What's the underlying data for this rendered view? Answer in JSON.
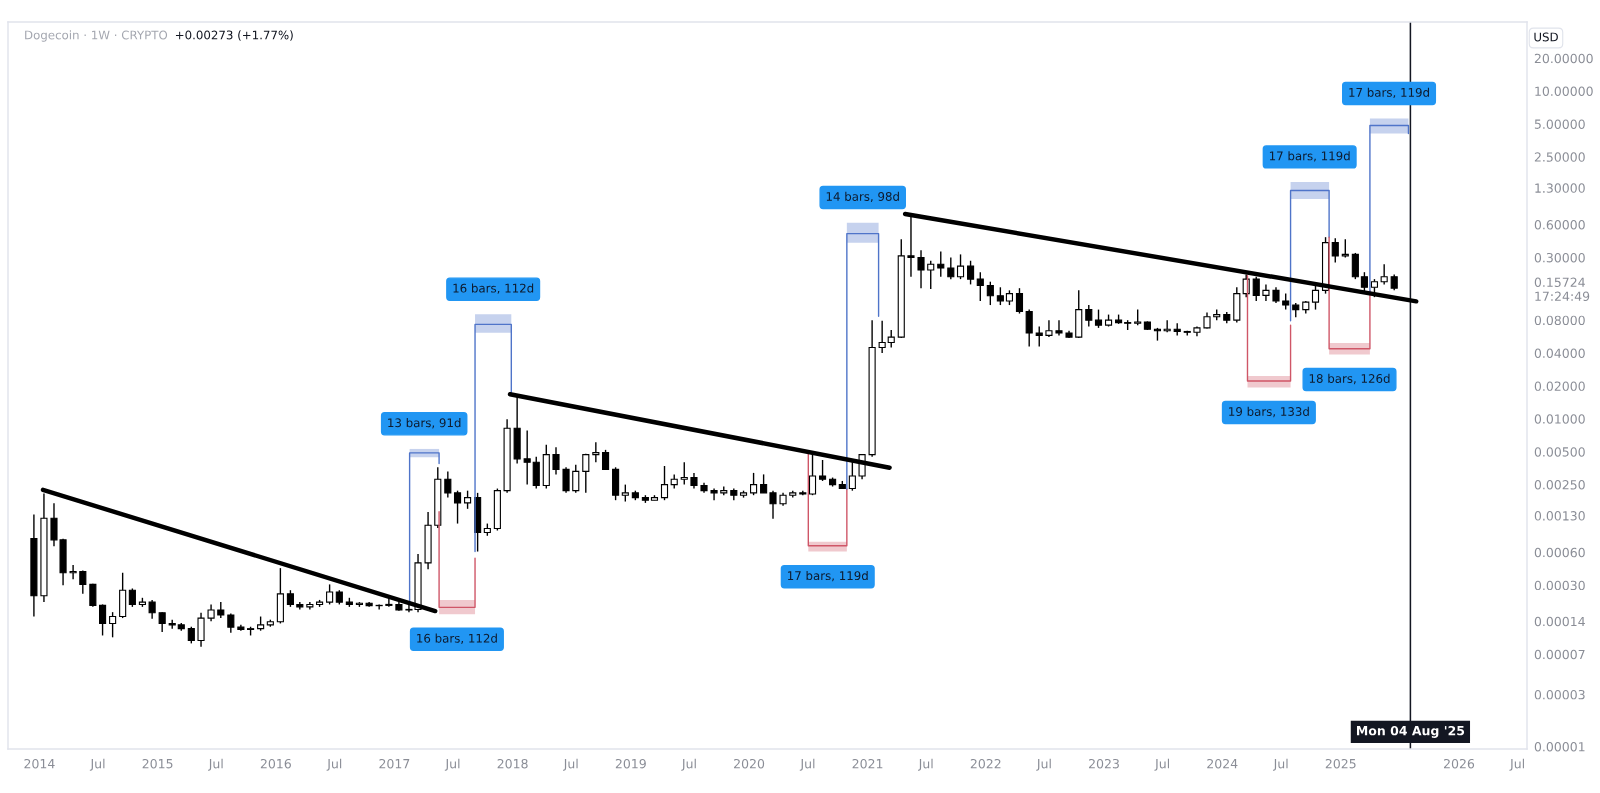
{
  "chart_data": {
    "type": "candlestick",
    "title": "Dogecoin · 1W · CRYPTO",
    "subtitle": "+0.00273 (+1.77%)",
    "ylabel": "USD",
    "log": true,
    "grid": false,
    "xlim": [
      "2013-09-26",
      "2026-07-30"
    ],
    "xticks": [
      {
        "value": "2014-01-01",
        "label": "2014"
      },
      {
        "value": "2014-07-01",
        "label": "Jul"
      },
      {
        "value": "2015-01-01",
        "label": "2015"
      },
      {
        "value": "2015-07-01",
        "label": "Jul"
      },
      {
        "value": "2016-01-01",
        "label": "2016"
      },
      {
        "value": "2016-07-01",
        "label": "Jul"
      },
      {
        "value": "2017-01-01",
        "label": "2017"
      },
      {
        "value": "2017-07-01",
        "label": "Jul"
      },
      {
        "value": "2018-01-01",
        "label": "2018"
      },
      {
        "value": "2018-07-01",
        "label": "Jul"
      },
      {
        "value": "2019-01-01",
        "label": "2019"
      },
      {
        "value": "2019-07-01",
        "label": "Jul"
      },
      {
        "value": "2020-01-01",
        "label": "2020"
      },
      {
        "value": "2020-07-01",
        "label": "Jul"
      },
      {
        "value": "2021-01-01",
        "label": "2021"
      },
      {
        "value": "2021-07-01",
        "label": "Jul"
      },
      {
        "value": "2022-01-01",
        "label": "2022"
      },
      {
        "value": "2022-07-01",
        "label": "Jul"
      },
      {
        "value": "2023-01-01",
        "label": "2023"
      },
      {
        "value": "2023-07-01",
        "label": "Jul"
      },
      {
        "value": "2024-01-01",
        "label": "2024"
      },
      {
        "value": "2024-07-01",
        "label": "Jul"
      },
      {
        "value": "2025-01-01",
        "label": "2025"
      },
      {
        "value": "2026-01-01",
        "label": "2026"
      },
      {
        "value": "2026-07-01",
        "label": "Jul"
      }
    ],
    "ylim": [
      9.5e-06,
      42.9
    ],
    "yticks": [
      {
        "value": 20,
        "label": "20.00000"
      },
      {
        "value": 10,
        "label": "10.00000"
      },
      {
        "value": 5,
        "label": "5.00000"
      },
      {
        "value": 2.5,
        "label": "2.50000"
      },
      {
        "value": 1.3,
        "label": "1.30000"
      },
      {
        "value": 0.6,
        "label": "0.60000"
      },
      {
        "value": 0.3,
        "label": "0.30000"
      },
      {
        "value": 0.15724,
        "label": "0.15724\n17:24:49"
      },
      {
        "value": 0.08,
        "label": "0.08000"
      },
      {
        "value": 0.04,
        "label": "0.04000"
      },
      {
        "value": 0.02,
        "label": "0.02000"
      },
      {
        "value": 0.01,
        "label": "0.01000"
      },
      {
        "value": 0.005,
        "label": "0.00500"
      },
      {
        "value": 0.0025,
        "label": "0.00250"
      },
      {
        "value": 0.0013,
        "label": "0.00130"
      },
      {
        "value": 0.0006,
        "label": "0.00060"
      },
      {
        "value": 0.0003,
        "label": "0.00030"
      },
      {
        "value": 0.00014,
        "label": "0.00014"
      },
      {
        "value": 7e-05,
        "label": "0.00007"
      },
      {
        "value": 3e-05,
        "label": "0.00003"
      },
      {
        "value": 1e-05,
        "label": "0.00001"
      }
    ],
    "series": [
      {
        "color": "#000000",
        "x": [
          "2013-12-15",
          "2014-01-15",
          "2014-02-15",
          "2014-03-15",
          "2014-04-15",
          "2014-05-15",
          "2014-06-15",
          "2014-07-15",
          "2014-08-15",
          "2014-09-15",
          "2014-10-15",
          "2014-11-15",
          "2014-12-15",
          "2015-01-15",
          "2015-02-15",
          "2015-03-15",
          "2015-04-15",
          "2015-05-15",
          "2015-06-15",
          "2015-07-15",
          "2015-08-15",
          "2015-09-15",
          "2015-10-15",
          "2015-11-15",
          "2015-12-15",
          "2016-01-15",
          "2016-02-15",
          "2016-03-15",
          "2016-04-15",
          "2016-05-15",
          "2016-06-15",
          "2016-07-15",
          "2016-08-15",
          "2016-09-15",
          "2016-10-15",
          "2016-11-15",
          "2016-12-15",
          "2017-01-15",
          "2017-02-15",
          "2017-03-15",
          "2017-04-15",
          "2017-05-15",
          "2017-06-15",
          "2017-07-15",
          "2017-08-15",
          "2017-09-15",
          "2017-10-15",
          "2017-11-15",
          "2017-12-15",
          "2018-01-15",
          "2018-02-15",
          "2018-03-15",
          "2018-04-15",
          "2018-05-15",
          "2018-06-15",
          "2018-07-15",
          "2018-08-15",
          "2018-09-15",
          "2018-10-15",
          "2018-11-15",
          "2018-12-15",
          "2019-01-15",
          "2019-02-15",
          "2019-03-15",
          "2019-04-15",
          "2019-05-15",
          "2019-06-15",
          "2019-07-15",
          "2019-08-15",
          "2019-09-15",
          "2019-10-15",
          "2019-11-15",
          "2019-12-15",
          "2020-01-15",
          "2020-02-15",
          "2020-03-15",
          "2020-04-15",
          "2020-05-15",
          "2020-06-15",
          "2020-07-15",
          "2020-08-15",
          "2020-09-15",
          "2020-10-15",
          "2020-11-15",
          "2020-12-15",
          "2021-01-15",
          "2021-02-15",
          "2021-03-15",
          "2021-04-15",
          "2021-05-15",
          "2021-06-15",
          "2021-07-15",
          "2021-08-15",
          "2021-09-15",
          "2021-10-15",
          "2021-11-15",
          "2021-12-15",
          "2022-01-15",
          "2022-02-15",
          "2022-03-15",
          "2022-04-15",
          "2022-05-15",
          "2022-06-15",
          "2022-07-15",
          "2022-08-15",
          "2022-09-15",
          "2022-10-15",
          "2022-11-15",
          "2022-12-15",
          "2023-01-15",
          "2023-02-15",
          "2023-03-15",
          "2023-04-15",
          "2023-05-15",
          "2023-06-15",
          "2023-07-15",
          "2023-08-15",
          "2023-09-15",
          "2023-10-15",
          "2023-11-15",
          "2023-12-15",
          "2024-01-15",
          "2024-02-15",
          "2024-03-15",
          "2024-04-15",
          "2024-05-15",
          "2024-06-15",
          "2024-07-15",
          "2024-08-15",
          "2024-09-15",
          "2024-10-15",
          "2024-11-15",
          "2024-12-15",
          "2025-01-15",
          "2025-02-15",
          "2025-03-15",
          "2025-04-15",
          "2025-05-15",
          "2025-06-15"
        ],
        "ohlc": [
          [
            0.0008,
            0.00133,
            0.000155,
            0.00024
          ],
          [
            0.00024,
            0.00207,
            0.00021,
            0.00123
          ],
          [
            0.00123,
            0.00169,
            0.00068,
            0.00078
          ],
          [
            0.00078,
            0.0008,
            0.0003,
            0.00039
          ],
          [
            0.00039,
            0.00046,
            0.00034,
            0.0004
          ],
          [
            0.0004,
            0.00041,
            0.00025,
            0.000305
          ],
          [
            0.000305,
            0.00031,
            0.00019,
            0.000196
          ],
          [
            0.000196,
            0.0002,
            0.000104,
            0.000134
          ],
          [
            0.000134,
            0.00017,
            0.0001,
            0.000155
          ],
          [
            0.000155,
            0.00039,
            0.00015,
            0.00027
          ],
          [
            0.00027,
            0.00028,
            0.00019,
            0.0002
          ],
          [
            0.0002,
            0.00023,
            0.00019,
            0.00021
          ],
          [
            0.00021,
            0.00022,
            0.000148,
            0.000168
          ],
          [
            0.000168,
            0.00017,
            0.000112,
            0.000134
          ],
          [
            0.000134,
            0.000145,
            0.00012,
            0.00013
          ],
          [
            0.00013,
            0.000135,
            0.000115,
            0.00012
          ],
          [
            0.00012,
            0.000125,
            8.8e-05,
            9.35e-05
          ],
          [
            9.35e-05,
            0.000168,
            8.2e-05,
            0.00015
          ],
          [
            0.00015,
            0.0002,
            0.00014,
            0.000178
          ],
          [
            0.000178,
            0.00021,
            0.00015,
            0.00016
          ],
          [
            0.00016,
            0.000165,
            0.00011,
            0.000124
          ],
          [
            0.000124,
            0.00013,
            0.000115,
            0.000118
          ],
          [
            0.000118,
            0.000125,
            0.000104,
            0.00012
          ],
          [
            0.00012,
            0.000155,
            0.000115,
            0.00013
          ],
          [
            0.00013,
            0.000145,
            0.000125,
            0.000139
          ],
          [
            0.000139,
            0.00043,
            0.000134,
            0.00025
          ],
          [
            0.00025,
            0.00027,
            0.00019,
            0.0002
          ],
          [
            0.0002,
            0.00021,
            0.00018,
            0.00019
          ],
          [
            0.00019,
            0.00021,
            0.00018,
            0.0002
          ],
          [
            0.0002,
            0.00022,
            0.00019,
            0.00021
          ],
          [
            0.00021,
            0.000305,
            0.0002,
            0.00026
          ],
          [
            0.00026,
            0.00027,
            0.0002,
            0.00021
          ],
          [
            0.00021,
            0.00023,
            0.00019,
            0.0002
          ],
          [
            0.0002,
            0.00021,
            0.00019,
            0.000205
          ],
          [
            0.000205,
            0.00021,
            0.00019,
            0.000195
          ],
          [
            0.000195,
            0.0002,
            0.00018,
            0.000196
          ],
          [
            0.000196,
            0.00023,
            0.00019,
            0.0002
          ],
          [
            0.0002,
            0.00021,
            0.000175,
            0.000178
          ],
          [
            0.000178,
            0.00021,
            0.00017,
            0.00018
          ],
          [
            0.00018,
            0.00058,
            0.00017,
            0.00048
          ],
          [
            0.00048,
            0.0014,
            0.00042,
            0.00106
          ],
          [
            0.00106,
            0.0036,
            0.001,
            0.0028
          ],
          [
            0.0028,
            0.0033,
            0.0019,
            0.0021
          ],
          [
            0.0021,
            0.0022,
            0.0011,
            0.0017
          ],
          [
            0.0017,
            0.0022,
            0.0015,
            0.0019
          ],
          [
            0.0019,
            0.0021,
            0.00061,
            0.00091
          ],
          [
            0.00091,
            0.0011,
            0.00085,
            0.00099
          ],
          [
            0.00099,
            0.0023,
            0.00095,
            0.0022
          ],
          [
            0.0022,
            0.0099,
            0.0021,
            0.0082
          ],
          [
            0.0082,
            0.0168,
            0.0039,
            0.0043
          ],
          [
            0.0043,
            0.0078,
            0.0025,
            0.004
          ],
          [
            0.004,
            0.0045,
            0.0023,
            0.00245
          ],
          [
            0.00245,
            0.0058,
            0.0023,
            0.0047
          ],
          [
            0.0047,
            0.0055,
            0.0031,
            0.00345
          ],
          [
            0.00345,
            0.0036,
            0.0021,
            0.0022
          ],
          [
            0.0022,
            0.0038,
            0.0021,
            0.0033
          ],
          [
            0.0033,
            0.0048,
            0.0021,
            0.0047
          ],
          [
            0.0047,
            0.0061,
            0.004,
            0.0049
          ],
          [
            0.0049,
            0.0052,
            0.0034,
            0.00345
          ],
          [
            0.00345,
            0.0036,
            0.0018,
            0.002
          ],
          [
            0.002,
            0.0025,
            0.00175,
            0.0021
          ],
          [
            0.0021,
            0.0022,
            0.0018,
            0.0019
          ],
          [
            0.0019,
            0.002,
            0.0017,
            0.0018
          ],
          [
            0.0018,
            0.002,
            0.0018,
            0.0019
          ],
          [
            0.0019,
            0.0037,
            0.0018,
            0.0025
          ],
          [
            0.0025,
            0.0031,
            0.0023,
            0.0028
          ],
          [
            0.0028,
            0.004,
            0.0025,
            0.0029
          ],
          [
            0.0029,
            0.0032,
            0.0023,
            0.00245
          ],
          [
            0.00245,
            0.0026,
            0.0021,
            0.0022
          ],
          [
            0.0022,
            0.0023,
            0.0018,
            0.0021
          ],
          [
            0.0021,
            0.0024,
            0.002,
            0.0022
          ],
          [
            0.0022,
            0.0023,
            0.0018,
            0.002
          ],
          [
            0.002,
            0.0022,
            0.0019,
            0.0021
          ],
          [
            0.0021,
            0.0032,
            0.002,
            0.0025
          ],
          [
            0.0025,
            0.0031,
            0.0021,
            0.0021
          ],
          [
            0.0021,
            0.0022,
            0.00122,
            0.00167
          ],
          [
            0.00167,
            0.0021,
            0.0016,
            0.002
          ],
          [
            0.002,
            0.0022,
            0.0019,
            0.0021
          ],
          [
            0.0021,
            0.0022,
            0.002,
            0.00205
          ],
          [
            0.00205,
            0.0048,
            0.002,
            0.003
          ],
          [
            0.003,
            0.0042,
            0.0027,
            0.0028
          ],
          [
            0.0028,
            0.0029,
            0.0024,
            0.0025
          ],
          [
            0.0025,
            0.0027,
            0.0023,
            0.0023
          ],
          [
            0.0023,
            0.0041,
            0.0022,
            0.003
          ],
          [
            0.003,
            0.0047,
            0.0028,
            0.0047
          ],
          [
            0.0047,
            0.08,
            0.0045,
            0.045
          ],
          [
            0.045,
            0.079,
            0.04,
            0.05
          ],
          [
            0.05,
            0.065,
            0.045,
            0.056
          ],
          [
            0.056,
            0.44,
            0.055,
            0.31
          ],
          [
            0.31,
            0.73,
            0.2,
            0.3
          ],
          [
            0.3,
            0.35,
            0.157,
            0.23
          ],
          [
            0.23,
            0.28,
            0.154,
            0.26
          ],
          [
            0.26,
            0.34,
            0.2,
            0.24
          ],
          [
            0.24,
            0.3,
            0.19,
            0.2
          ],
          [
            0.2,
            0.32,
            0.19,
            0.25
          ],
          [
            0.25,
            0.28,
            0.17,
            0.19
          ],
          [
            0.19,
            0.22,
            0.12,
            0.166
          ],
          [
            0.166,
            0.18,
            0.11,
            0.134
          ],
          [
            0.134,
            0.16,
            0.11,
            0.12
          ],
          [
            0.12,
            0.15,
            0.11,
            0.14
          ],
          [
            0.14,
            0.157,
            0.092,
            0.096
          ],
          [
            0.096,
            0.1,
            0.046,
            0.061
          ],
          [
            0.061,
            0.07,
            0.046,
            0.058
          ],
          [
            0.058,
            0.08,
            0.056,
            0.064
          ],
          [
            0.064,
            0.08,
            0.058,
            0.061
          ],
          [
            0.061,
            0.064,
            0.055,
            0.056
          ],
          [
            0.056,
            0.15,
            0.055,
            0.1
          ],
          [
            0.1,
            0.11,
            0.07,
            0.08
          ],
          [
            0.08,
            0.1,
            0.068,
            0.072
          ],
          [
            0.072,
            0.09,
            0.07,
            0.08
          ],
          [
            0.08,
            0.09,
            0.074,
            0.076
          ],
          [
            0.076,
            0.08,
            0.065,
            0.075
          ],
          [
            0.075,
            0.1,
            0.072,
            0.077
          ],
          [
            0.077,
            0.078,
            0.065,
            0.066
          ],
          [
            0.066,
            0.068,
            0.052,
            0.064
          ],
          [
            0.064,
            0.08,
            0.062,
            0.066
          ],
          [
            0.066,
            0.075,
            0.058,
            0.063
          ],
          [
            0.063,
            0.064,
            0.058,
            0.062
          ],
          [
            0.062,
            0.07,
            0.057,
            0.068
          ],
          [
            0.068,
            0.094,
            0.067,
            0.086
          ],
          [
            0.086,
            0.1,
            0.08,
            0.09
          ],
          [
            0.09,
            0.095,
            0.075,
            0.08
          ],
          [
            0.08,
            0.16,
            0.076,
            0.14
          ],
          [
            0.14,
            0.21,
            0.13,
            0.19
          ],
          [
            0.19,
            0.2,
            0.12,
            0.135
          ],
          [
            0.135,
            0.17,
            0.12,
            0.15
          ],
          [
            0.15,
            0.16,
            0.115,
            0.12
          ],
          [
            0.12,
            0.14,
            0.1,
            0.11
          ],
          [
            0.11,
            0.115,
            0.085,
            0.1
          ],
          [
            0.1,
            0.12,
            0.092,
            0.117
          ],
          [
            0.117,
            0.17,
            0.1,
            0.15
          ],
          [
            0.15,
            0.46,
            0.14,
            0.41
          ],
          [
            0.41,
            0.45,
            0.27,
            0.31
          ],
          [
            0.31,
            0.44,
            0.3,
            0.32
          ],
          [
            0.32,
            0.33,
            0.19,
            0.2
          ],
          [
            0.2,
            0.22,
            0.14,
            0.16
          ],
          [
            0.16,
            0.19,
            0.13,
            0.18
          ],
          [
            0.18,
            0.26,
            0.17,
            0.2
          ],
          [
            0.2,
            0.21,
            0.15,
            0.15724
          ]
        ]
      },
      {
        "type": "line",
        "color": "#000000",
        "x": [
          "2014-01-12",
          "2017-05-07"
        ],
        "values": [
          0.00224,
          0.000174
        ]
      },
      {
        "type": "line",
        "color": "#000000",
        "x": [
          "2017-12-24",
          "2021-03-10"
        ],
        "values": [
          0.0168,
          0.00357
        ]
      },
      {
        "type": "line",
        "color": "#000000",
        "x": [
          "2021-04-27",
          "2025-08-22"
        ],
        "values": [
          0.75,
          0.119
        ]
      },
      {
        "type": "line",
        "color": "#4f74c9",
        "x": [
          "2017-02-17",
          "2017-02-17",
          "2017-05-19",
          "2017-05-19"
        ],
        "values": [
          0.00021,
          0.00488,
          0.00488,
          0.0039
        ],
        "lower": [
          null,
          0.00445,
          0.00445,
          null
        ],
        "upper": [
          null,
          0.0053,
          0.0053,
          null
        ]
      },
      {
        "type": "line",
        "color": "#cf5667",
        "x": [
          "2017-05-19",
          "2017-05-19",
          "2017-09-07",
          "2017-09-07"
        ],
        "values": [
          0.00141,
          0.000188,
          0.000188,
          0.00053
        ],
        "lower": [
          null,
          0.000163,
          0.000163,
          null
        ],
        "upper": [
          null,
          0.00022,
          0.00022,
          null
        ]
      },
      {
        "type": "line",
        "color": "#4f74c9",
        "x": [
          "2017-09-07",
          "2017-09-07",
          "2017-12-28",
          "2017-12-28"
        ],
        "values": [
          0.00061,
          0.0732,
          0.0732,
          0.0174
        ],
        "lower": [
          null,
          0.0615,
          0.0615,
          null
        ],
        "upper": [
          null,
          0.0905,
          0.0905,
          null
        ]
      },
      {
        "type": "line",
        "color": "#cf5667",
        "x": [
          "2020-07-02",
          "2020-07-02",
          "2020-10-29",
          "2020-10-29"
        ],
        "values": [
          0.00478,
          0.000688,
          0.000688,
          0.00228
        ],
        "lower": [
          null,
          0.00061,
          0.00061,
          null
        ],
        "upper": [
          null,
          0.00075,
          0.00075,
          null
        ]
      },
      {
        "type": "line",
        "color": "#4f74c9",
        "x": [
          "2020-10-29",
          "2020-10-29",
          "2021-02-04",
          "2021-02-04"
        ],
        "values": [
          0.00228,
          0.496,
          0.496,
          0.087
        ],
        "lower": [
          null,
          0.41,
          0.41,
          null
        ],
        "upper": [
          null,
          0.625,
          0.625,
          null
        ]
      },
      {
        "type": "line",
        "color": "#cf5667",
        "x": [
          "2024-03-19",
          "2024-03-19",
          "2024-07-30",
          "2024-07-30"
        ],
        "values": [
          0.204,
          0.0222,
          0.0222,
          0.072
        ],
        "lower": [
          null,
          0.0194,
          0.0194,
          null
        ],
        "upper": [
          null,
          0.0246,
          0.0246,
          null
        ]
      },
      {
        "type": "line",
        "color": "#4f74c9",
        "x": [
          "2024-07-30",
          "2024-07-30",
          "2024-11-26",
          "2024-11-26"
        ],
        "values": [
          0.079,
          1.23,
          1.23,
          0.46
        ],
        "lower": [
          null,
          1.03,
          1.03,
          null
        ],
        "upper": [
          null,
          1.47,
          1.47,
          null
        ]
      },
      {
        "type": "line",
        "color": "#cf5667",
        "x": [
          "2024-11-26",
          "2024-11-26",
          "2025-04-01",
          "2025-04-01"
        ],
        "values": [
          0.46,
          0.0438,
          0.0438,
          0.15
        ],
        "lower": [
          null,
          0.0389,
          0.0389,
          null
        ],
        "upper": [
          null,
          0.0495,
          0.0495,
          null
        ]
      },
      {
        "type": "line",
        "color": "#4f74c9",
        "x": [
          "2025-04-01",
          "2025-04-01",
          "2025-07-29",
          "2025-07-29"
        ],
        "values": [
          0.14,
          4.84,
          4.84,
          4.09
        ],
        "lower": [
          null,
          4.09,
          4.09,
          null
        ],
        "upper": [
          null,
          5.6,
          5.6,
          null
        ]
      }
    ],
    "ref_lines": [
      {
        "axis": "x",
        "value": "2025-08-04",
        "label": "Mon 04 Aug '25",
        "color": "#131722"
      }
    ],
    "annotations": [
      {
        "text": "13 bars, 91d",
        "x": "2017-04-03",
        "y": 0.00488
      },
      {
        "text": "16 bars, 112d",
        "x": "2017-07-13",
        "y": 0.000188
      },
      {
        "text": "16 bars, 112d",
        "x": "2017-11-02",
        "y": 0.0732
      },
      {
        "text": "17 bars, 119d",
        "x": "2020-08-31",
        "y": 0.000688
      },
      {
        "text": "14 bars, 98d",
        "x": "2020-12-17",
        "y": 0.496
      },
      {
        "text": "19 bars, 133d",
        "x": "2024-05-24",
        "y": 0.0222
      },
      {
        "text": "17 bars, 119d",
        "x": "2024-09-27",
        "y": 1.23
      },
      {
        "text": "18 bars, 126d",
        "x": "2025-01-28",
        "y": 0.0438
      },
      {
        "text": "17 bars, 119d",
        "x": "2025-05-30",
        "y": 4.84
      }
    ]
  }
}
